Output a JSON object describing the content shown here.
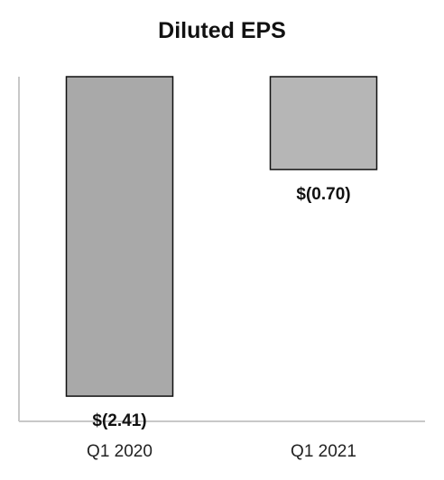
{
  "chart_data": {
    "type": "bar",
    "title": "Diluted EPS",
    "categories": [
      "Q1 2020",
      "Q1 2021"
    ],
    "values": [
      -2.41,
      -0.7
    ],
    "data_labels": [
      "$(2.41)",
      "$(0.70)"
    ],
    "xlabel": "",
    "ylabel": "",
    "ylim": [
      -2.6,
      0
    ],
    "grid": false,
    "legend": "none",
    "colors": {
      "bar_q1_2020": "#a9a9a9",
      "bar_q1_2021": "#b6b6b6",
      "bar_edge": "#111111",
      "axis": "#c8c8c8"
    }
  }
}
